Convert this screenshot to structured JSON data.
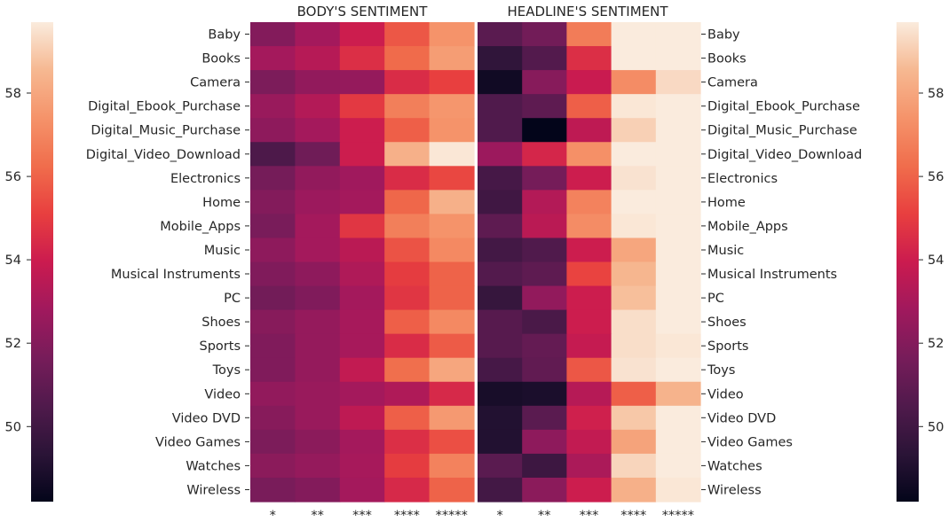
{
  "chart_data": {
    "type": "heatmap",
    "rows": [
      "Baby",
      "Books",
      "Camera",
      "Digital_Ebook_Purchase",
      "Digital_Music_Purchase",
      "Digital_Video_Download",
      "Electronics",
      "Home",
      "Mobile_Apps",
      "Music",
      "Musical Instruments",
      "PC",
      "Shoes",
      "Sports",
      "Toys",
      "Video",
      "Video DVD",
      "Video Games",
      "Watches",
      "Wireless"
    ],
    "columns": [
      "*",
      "**",
      "***",
      "****",
      "*****"
    ],
    "panels": [
      {
        "title": "BODY'S SENTIMENT",
        "values": [
          [
            52.0,
            52.9,
            54.0,
            55.7,
            57.4
          ],
          [
            52.9,
            53.4,
            54.6,
            56.2,
            57.7
          ],
          [
            51.8,
            52.4,
            52.5,
            54.5,
            55.1
          ],
          [
            52.6,
            53.3,
            54.9,
            56.8,
            57.5
          ],
          [
            52.3,
            52.9,
            54.0,
            55.9,
            57.4
          ],
          [
            50.4,
            51.4,
            54.0,
            58.3,
            59.6
          ],
          [
            51.6,
            52.4,
            52.8,
            54.5,
            55.3
          ],
          [
            52.0,
            52.7,
            52.9,
            56.1,
            58.3
          ],
          [
            51.7,
            52.9,
            54.8,
            56.8,
            57.4
          ],
          [
            52.3,
            52.9,
            53.5,
            55.6,
            57.1
          ],
          [
            51.9,
            52.3,
            53.2,
            55.0,
            56.0
          ],
          [
            51.5,
            51.9,
            52.9,
            54.8,
            56.0
          ],
          [
            52.1,
            52.5,
            53.0,
            55.9,
            57.1
          ],
          [
            51.9,
            52.5,
            53.0,
            54.5,
            55.8
          ],
          [
            51.9,
            52.5,
            53.7,
            56.3,
            58.0
          ],
          [
            52.4,
            52.6,
            52.9,
            53.2,
            54.4
          ],
          [
            52.1,
            52.6,
            53.6,
            55.9,
            57.6
          ],
          [
            51.8,
            52.2,
            52.9,
            54.6,
            55.5
          ],
          [
            52.2,
            52.5,
            53.0,
            55.0,
            56.9
          ],
          [
            51.7,
            52.0,
            52.9,
            54.4,
            56.0
          ]
        ]
      },
      {
        "title": "HEADLINE'S SENTIMENT",
        "values": [
          [
            50.8,
            51.5,
            56.7,
            59.7,
            59.7
          ],
          [
            49.5,
            50.6,
            54.6,
            59.7,
            59.7
          ],
          [
            48.6,
            52.1,
            53.9,
            57.2,
            59.3
          ],
          [
            50.5,
            50.9,
            55.9,
            59.6,
            59.7
          ],
          [
            50.5,
            48.2,
            53.6,
            59.1,
            59.7
          ],
          [
            52.7,
            54.3,
            57.3,
            59.7,
            59.7
          ],
          [
            50.2,
            51.6,
            54.0,
            59.5,
            59.7
          ],
          [
            50.0,
            53.3,
            56.9,
            59.7,
            59.7
          ],
          [
            50.9,
            53.5,
            57.2,
            59.6,
            59.7
          ],
          [
            50.1,
            50.5,
            54.0,
            58.0,
            59.7
          ],
          [
            50.6,
            50.9,
            55.2,
            58.5,
            59.7
          ],
          [
            49.7,
            52.4,
            54.0,
            58.7,
            59.7
          ],
          [
            50.7,
            50.3,
            54.0,
            59.4,
            59.7
          ],
          [
            50.7,
            51.1,
            53.8,
            59.4,
            59.6
          ],
          [
            50.2,
            51.0,
            55.7,
            59.5,
            59.7
          ],
          [
            48.8,
            48.9,
            53.4,
            55.9,
            58.4
          ],
          [
            49.1,
            50.8,
            54.1,
            58.9,
            59.7
          ],
          [
            49.1,
            52.3,
            53.7,
            57.9,
            59.7
          ],
          [
            50.8,
            49.9,
            53.1,
            59.2,
            59.7
          ],
          [
            50.1,
            52.2,
            54.0,
            58.3,
            59.6
          ]
        ]
      }
    ],
    "colorbar": {
      "min": 48.2,
      "max": 59.7,
      "ticks": [
        50,
        52,
        54,
        56,
        58
      ],
      "colormap": "rocket"
    }
  }
}
